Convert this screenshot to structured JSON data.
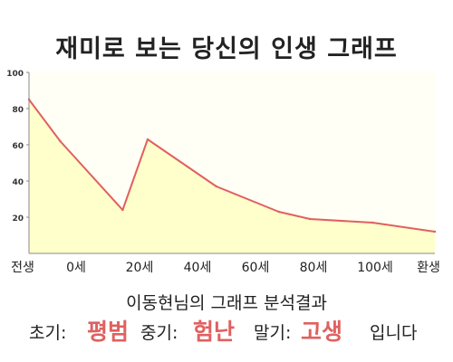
{
  "header": {
    "title": "재미로 보는 당신의 인생 그래프"
  },
  "chart_data": {
    "type": "area",
    "x_tick_labels": [
      "전생",
      "0세",
      "20세",
      "40세",
      "60세",
      "80세",
      "100세",
      "환생"
    ],
    "y_ticks": [
      20,
      40,
      60,
      80,
      100
    ],
    "ylim": [
      0,
      100
    ],
    "grid": false,
    "series": [
      {
        "values": [
          {
            "x": "-10세",
            "y": 85
          },
          {
            "x": "0세",
            "y": 62
          },
          {
            "x": "20세",
            "y": 24
          },
          {
            "x": "28세",
            "y": 63
          },
          {
            "x": "50세",
            "y": 37
          },
          {
            "x": "70세",
            "y": 23
          },
          {
            "x": "80세",
            "y": 19
          },
          {
            "x": "100세",
            "y": 17
          },
          {
            "x": "120세",
            "y": 12
          }
        ]
      }
    ],
    "colors": {
      "line": "#e06060",
      "fill": "#ffffcc",
      "plot_bg": "#fffff5"
    }
  },
  "result": {
    "subtitle": "이동현님의 그래프 분석결과",
    "early_label": "초기:",
    "early_value": "평범",
    "mid_label": "중기:",
    "mid_value": "험난",
    "late_label": "말기:",
    "late_value": "고생",
    "ending": "입니다"
  }
}
